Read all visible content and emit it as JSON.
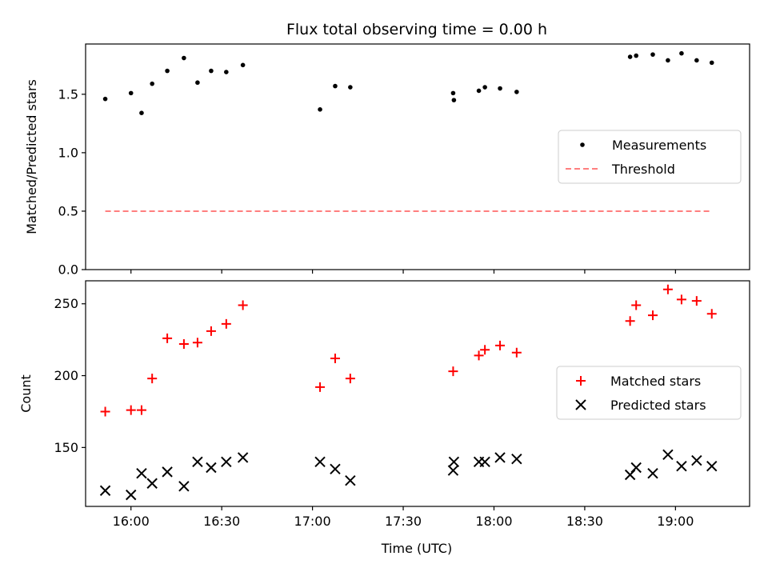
{
  "chart_data": [
    {
      "type": "scatter",
      "title": "Flux total observing time = 0.00 h",
      "xlabel": "",
      "ylabel": "Matched/Predicted stars",
      "ylim": [
        0,
        1.93
      ],
      "yticks": [
        "0.0",
        "0.5",
        "1.0",
        "1.5"
      ],
      "ytick_values": [
        0,
        0.5,
        1.0,
        1.5
      ],
      "xtick_labels_visible": false,
      "legend_position": "center-right",
      "series": [
        {
          "name": "Measurements",
          "kind": "scatter",
          "marker": "dot",
          "color": "#000000",
          "points": [
            [
              "15:51:30",
              1.46
            ],
            [
              "16:00:00",
              1.51
            ],
            [
              "16:03:30",
              1.34
            ],
            [
              "16:07:00",
              1.59
            ],
            [
              "16:12:00",
              1.7
            ],
            [
              "16:17:30",
              1.81
            ],
            [
              "16:22:00",
              1.6
            ],
            [
              "16:26:30",
              1.7
            ],
            [
              "16:31:30",
              1.69
            ],
            [
              "16:37:00",
              1.75
            ],
            [
              "17:02:30",
              1.37
            ],
            [
              "17:07:30",
              1.57
            ],
            [
              "17:12:30",
              1.56
            ],
            [
              "17:46:30",
              1.51
            ],
            [
              "17:46:45",
              1.45
            ],
            [
              "17:55:00",
              1.53
            ],
            [
              "17:57:00",
              1.56
            ],
            [
              "18:02:00",
              1.55
            ],
            [
              "18:07:30",
              1.52
            ],
            [
              "18:45:00",
              1.82
            ],
            [
              "18:47:00",
              1.83
            ],
            [
              "18:52:30",
              1.84
            ],
            [
              "18:57:30",
              1.79
            ],
            [
              "19:02:00",
              1.85
            ],
            [
              "19:07:00",
              1.79
            ],
            [
              "19:12:00",
              1.77
            ]
          ]
        },
        {
          "name": "Threshold",
          "kind": "line",
          "style": "dashed",
          "color": "#ff7f7f",
          "points": [
            [
              "15:51:30",
              0.5
            ],
            [
              "19:12:00",
              0.5
            ]
          ]
        }
      ]
    },
    {
      "type": "scatter",
      "title": "",
      "xlabel": "Time (UTC)",
      "ylabel": "Count",
      "ylim": [
        109,
        266
      ],
      "yticks": [
        "150",
        "200",
        "250"
      ],
      "ytick_values": [
        150,
        200,
        250
      ],
      "legend_position": "center-right",
      "series": [
        {
          "name": "Matched stars",
          "kind": "scatter",
          "marker": "plus",
          "color": "#ff0000",
          "points": [
            [
              "15:51:30",
              175
            ],
            [
              "16:00:00",
              176
            ],
            [
              "16:03:30",
              176
            ],
            [
              "16:07:00",
              198
            ],
            [
              "16:12:00",
              226
            ],
            [
              "16:17:30",
              222
            ],
            [
              "16:22:00",
              223
            ],
            [
              "16:26:30",
              231
            ],
            [
              "16:31:30",
              236
            ],
            [
              "16:37:00",
              249
            ],
            [
              "17:02:30",
              192
            ],
            [
              "17:07:30",
              212
            ],
            [
              "17:12:30",
              198
            ],
            [
              "17:46:30",
              203
            ],
            [
              "17:55:00",
              214
            ],
            [
              "17:57:00",
              218
            ],
            [
              "18:02:00",
              221
            ],
            [
              "18:07:30",
              216
            ],
            [
              "18:45:00",
              238
            ],
            [
              "18:47:00",
              249
            ],
            [
              "18:52:30",
              242
            ],
            [
              "18:57:30",
              260
            ],
            [
              "19:02:00",
              253
            ],
            [
              "19:07:00",
              252
            ],
            [
              "19:12:00",
              243
            ]
          ]
        },
        {
          "name": "Predicted stars",
          "kind": "scatter",
          "marker": "x",
          "color": "#000000",
          "points": [
            [
              "15:51:30",
              120
            ],
            [
              "16:00:00",
              117
            ],
            [
              "16:03:30",
              132
            ],
            [
              "16:07:00",
              125
            ],
            [
              "16:12:00",
              133
            ],
            [
              "16:17:30",
              123
            ],
            [
              "16:22:00",
              140
            ],
            [
              "16:26:30",
              136
            ],
            [
              "16:31:30",
              140
            ],
            [
              "16:37:00",
              143
            ],
            [
              "17:02:30",
              140
            ],
            [
              "17:07:30",
              135
            ],
            [
              "17:12:30",
              127
            ],
            [
              "17:46:30",
              134
            ],
            [
              "17:46:45",
              140
            ],
            [
              "17:55:00",
              140
            ],
            [
              "17:57:00",
              140
            ],
            [
              "18:02:00",
              143
            ],
            [
              "18:07:30",
              142
            ],
            [
              "18:45:00",
              131
            ],
            [
              "18:47:00",
              136
            ],
            [
              "18:52:30",
              132
            ],
            [
              "18:57:30",
              145
            ],
            [
              "19:02:00",
              137
            ],
            [
              "19:07:00",
              141
            ],
            [
              "19:12:00",
              137
            ]
          ]
        }
      ]
    }
  ],
  "shared_x": {
    "label": "Time (UTC)",
    "range": [
      "15:45:00",
      "19:24:30"
    ],
    "ticks": [
      "16:00",
      "16:30",
      "17:00",
      "17:30",
      "18:00",
      "18:30",
      "19:00"
    ]
  }
}
